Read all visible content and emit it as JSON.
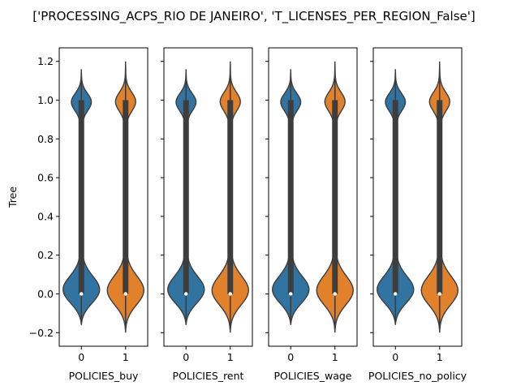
{
  "chart_data": {
    "type": "violin",
    "title": "['PROCESSING_ACPS_RIO DE JANEIRO', 'T_LICENSES_PER_REGION_False']",
    "ylabel": "Tree",
    "ylim": [
      -0.27,
      1.27
    ],
    "yticks": [
      -0.2,
      0.0,
      0.2,
      0.4,
      0.6,
      0.8,
      1.0,
      1.2
    ],
    "ytick_labels": [
      "−0.2",
      "0.0",
      "0.2",
      "0.4",
      "0.6",
      "0.8",
      "1.0",
      "1.2"
    ],
    "categories": [
      "0",
      "1"
    ],
    "colors": {
      "0": "#3274a1",
      "1": "#e1812c",
      "box": "#3d3d3d",
      "median": "#ffffff"
    },
    "panels": [
      {
        "xlabel": "POLICIES_buy",
        "violins": [
          {
            "category": "0",
            "min": -0.16,
            "max": 1.16,
            "q1": 0.0,
            "median": 0.0,
            "q3": 1.0
          },
          {
            "category": "1",
            "min": -0.2,
            "max": 1.2,
            "q1": 0.0,
            "median": 0.0,
            "q3": 1.0
          }
        ]
      },
      {
        "xlabel": "POLICIES_rent",
        "violins": [
          {
            "category": "0",
            "min": -0.16,
            "max": 1.16,
            "q1": 0.0,
            "median": 0.0,
            "q3": 1.0
          },
          {
            "category": "1",
            "min": -0.2,
            "max": 1.2,
            "q1": 0.0,
            "median": 0.0,
            "q3": 1.0
          }
        ]
      },
      {
        "xlabel": "POLICIES_wage",
        "violins": [
          {
            "category": "0",
            "min": -0.16,
            "max": 1.16,
            "q1": 0.0,
            "median": 0.0,
            "q3": 1.0
          },
          {
            "category": "1",
            "min": -0.2,
            "max": 1.2,
            "q1": 0.0,
            "median": 0.0,
            "q3": 1.0
          }
        ]
      },
      {
        "xlabel": "POLICIES_no_policy",
        "violins": [
          {
            "category": "0",
            "min": -0.16,
            "max": 1.16,
            "q1": 0.0,
            "median": 0.0,
            "q3": 1.0
          },
          {
            "category": "1",
            "min": -0.2,
            "max": 1.2,
            "q1": 0.0,
            "median": 0.0,
            "q3": 1.0
          }
        ]
      }
    ]
  }
}
